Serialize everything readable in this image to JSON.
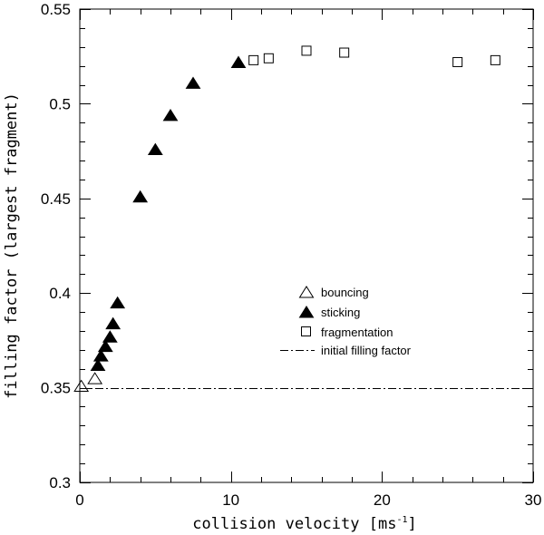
{
  "chart_data": {
    "type": "scatter",
    "xlabel": "collision velocity [ms",
    "xlabel_sup": "-1",
    "xlabel_close": "]",
    "ylabel": "filling factor (largest fragment)",
    "xlim": [
      0,
      30
    ],
    "ylim": [
      0.3,
      0.55
    ],
    "x_ticks": [
      0,
      10,
      20,
      30
    ],
    "x_tick_labels": [
      "0",
      "10",
      "20",
      "30"
    ],
    "x_minor_step": 2,
    "y_ticks": [
      0.3,
      0.35,
      0.4,
      0.45,
      0.5,
      0.55
    ],
    "y_tick_labels": [
      "0.3",
      "0.35",
      "0.4",
      "0.45",
      "0.5",
      "0.55"
    ],
    "y_minor_step": 0.01,
    "grid": false,
    "legend_position": "center-right",
    "series": [
      {
        "name": "bouncing",
        "marker": "open-triangle",
        "points": [
          [
            0.1,
            0.351
          ],
          [
            1.0,
            0.355
          ]
        ]
      },
      {
        "name": "sticking",
        "marker": "filled-triangle",
        "points": [
          [
            1.2,
            0.362
          ],
          [
            1.4,
            0.367
          ],
          [
            1.7,
            0.372
          ],
          [
            2.0,
            0.377
          ],
          [
            2.2,
            0.384
          ],
          [
            2.5,
            0.395
          ],
          [
            4.0,
            0.451
          ],
          [
            5.0,
            0.476
          ],
          [
            6.0,
            0.494
          ],
          [
            7.5,
            0.511
          ],
          [
            10.5,
            0.522
          ]
        ]
      },
      {
        "name": "fragmentation",
        "marker": "open-square",
        "points": [
          [
            11.5,
            0.523
          ],
          [
            12.5,
            0.524
          ],
          [
            15.0,
            0.528
          ],
          [
            17.5,
            0.527
          ],
          [
            25.0,
            0.522
          ],
          [
            27.5,
            0.523
          ]
        ]
      },
      {
        "name": "initial filling factor",
        "marker": "dash-dot-line",
        "y": 0.35
      }
    ]
  }
}
